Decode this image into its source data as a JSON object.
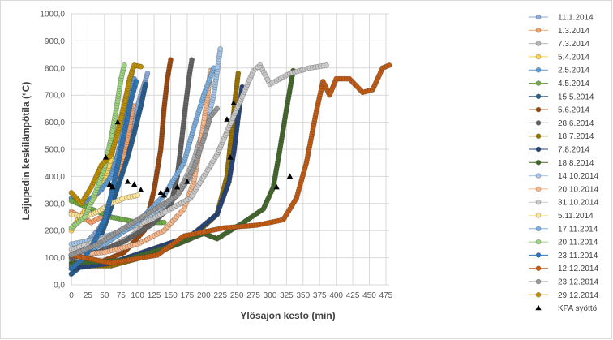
{
  "chart_data": {
    "type": "scatter",
    "xlabel": "Ylösajon kesto (min)",
    "ylabel": "Leijupedin keskilämpötila (°C)",
    "xlim": [
      0,
      480
    ],
    "ylim": [
      0,
      1000
    ],
    "x_ticks": [
      "0",
      "25",
      "50",
      "75",
      "100",
      "125",
      "150",
      "175",
      "200",
      "225",
      "250",
      "275",
      "300",
      "325",
      "350",
      "375",
      "400",
      "425",
      "450",
      "475"
    ],
    "y_ticks": [
      "0,0",
      "100,0",
      "200,0",
      "300,0",
      "400,0",
      "500,0",
      "600,0",
      "700,0",
      "800,0",
      "900,0",
      "1000,0"
    ],
    "grid": true,
    "legend_position": "right",
    "series": [
      {
        "name": "11.1.2014",
        "color": "#8aa9d6",
        "points": [
          [
            0,
            110
          ],
          [
            20,
            150
          ],
          [
            40,
            200
          ],
          [
            55,
            260
          ],
          [
            65,
            330
          ],
          [
            75,
            420
          ],
          [
            85,
            520
          ],
          [
            95,
            620
          ],
          [
            105,
            700
          ],
          [
            115,
            780
          ]
        ]
      },
      {
        "name": "1.3.2014",
        "color": "#f4a06b",
        "points": [
          [
            0,
            270
          ],
          [
            15,
            250
          ],
          [
            30,
            230
          ],
          [
            45,
            250
          ],
          [
            60,
            300
          ],
          [
            70,
            380
          ],
          [
            80,
            480
          ],
          [
            88,
            580
          ],
          [
            93,
            660
          ]
        ]
      },
      {
        "name": "7.3.2014",
        "color": "#b8b8b8",
        "points": [
          [
            0,
            90
          ],
          [
            30,
            110
          ],
          [
            60,
            140
          ],
          [
            90,
            180
          ],
          [
            120,
            230
          ],
          [
            150,
            300
          ],
          [
            170,
            380
          ],
          [
            185,
            460
          ],
          [
            195,
            540
          ],
          [
            205,
            600
          ]
        ]
      },
      {
        "name": "5.4.2014",
        "color": "#ffd24d",
        "points": [
          [
            0,
            200
          ],
          [
            10,
            240
          ],
          [
            25,
            290
          ],
          [
            40,
            340
          ],
          [
            55,
            420
          ],
          [
            65,
            520
          ],
          [
            75,
            620
          ],
          [
            85,
            720
          ],
          [
            92,
            790
          ]
        ]
      },
      {
        "name": "2.5.2014",
        "color": "#5b9bd5",
        "points": [
          [
            0,
            320
          ],
          [
            15,
            300
          ],
          [
            30,
            320
          ],
          [
            45,
            350
          ],
          [
            60,
            400
          ],
          [
            70,
            480
          ],
          [
            80,
            580
          ],
          [
            88,
            680
          ],
          [
            95,
            760
          ]
        ]
      },
      {
        "name": "4.5.2014",
        "color": "#70ad47",
        "points": [
          [
            0,
            310
          ],
          [
            20,
            290
          ],
          [
            40,
            270
          ],
          [
            60,
            250
          ],
          [
            80,
            240
          ],
          [
            100,
            230
          ],
          [
            120,
            230
          ],
          [
            140,
            230
          ]
        ]
      },
      {
        "name": "15.5.2014",
        "color": "#255e91",
        "points": [
          [
            0,
            40
          ],
          [
            20,
            80
          ],
          [
            40,
            150
          ],
          [
            55,
            250
          ],
          [
            70,
            360
          ],
          [
            85,
            470
          ],
          [
            95,
            560
          ],
          [
            105,
            660
          ],
          [
            112,
            740
          ]
        ]
      },
      {
        "name": "5.6.2014",
        "color": "#9e480e",
        "points": [
          [
            0,
            60
          ],
          [
            40,
            80
          ],
          [
            80,
            120
          ],
          [
            110,
            200
          ],
          [
            125,
            350
          ],
          [
            135,
            500
          ],
          [
            140,
            650
          ],
          [
            145,
            760
          ],
          [
            150,
            830
          ]
        ]
      },
      {
        "name": "28.6.2014",
        "color": "#636363",
        "points": [
          [
            0,
            100
          ],
          [
            40,
            120
          ],
          [
            80,
            160
          ],
          [
            120,
            220
          ],
          [
            150,
            290
          ],
          [
            160,
            400
          ],
          [
            166,
            520
          ],
          [
            172,
            650
          ],
          [
            178,
            770
          ],
          [
            182,
            830
          ]
        ]
      },
      {
        "name": "18.7.2014",
        "color": "#997300",
        "points": [
          [
            0,
            70
          ],
          [
            60,
            70
          ],
          [
            120,
            110
          ],
          [
            180,
            170
          ],
          [
            220,
            260
          ],
          [
            235,
            400
          ],
          [
            242,
            560
          ],
          [
            248,
            700
          ],
          [
            252,
            780
          ]
        ]
      },
      {
        "name": "7.8.2014",
        "color": "#264478",
        "points": [
          [
            0,
            60
          ],
          [
            60,
            80
          ],
          [
            120,
            130
          ],
          [
            180,
            180
          ],
          [
            220,
            260
          ],
          [
            238,
            380
          ],
          [
            246,
            500
          ],
          [
            252,
            620
          ],
          [
            258,
            730
          ]
        ]
      },
      {
        "name": "18.8.2014",
        "color": "#43682b",
        "points": [
          [
            0,
            80
          ],
          [
            80,
            90
          ],
          [
            160,
            150
          ],
          [
            200,
            190
          ],
          [
            220,
            170
          ],
          [
            260,
            230
          ],
          [
            290,
            280
          ],
          [
            305,
            360
          ],
          [
            315,
            500
          ],
          [
            325,
            650
          ],
          [
            335,
            790
          ]
        ]
      },
      {
        "name": "14.10.2014",
        "color": "#a5c6e8",
        "points": [
          [
            0,
            150
          ],
          [
            40,
            170
          ],
          [
            80,
            200
          ],
          [
            120,
            260
          ],
          [
            160,
            330
          ],
          [
            185,
            420
          ],
          [
            200,
            550
          ],
          [
            215,
            700
          ],
          [
            225,
            870
          ]
        ]
      },
      {
        "name": "20.10.2014",
        "color": "#f8b88b",
        "points": [
          [
            0,
            110
          ],
          [
            50,
            120
          ],
          [
            100,
            150
          ],
          [
            140,
            200
          ],
          [
            170,
            280
          ],
          [
            185,
            380
          ],
          [
            195,
            520
          ],
          [
            205,
            680
          ],
          [
            210,
            790
          ]
        ]
      },
      {
        "name": "31.10.2014",
        "color": "#c9c9c9",
        "points": [
          [
            0,
            130
          ],
          [
            60,
            180
          ],
          [
            120,
            240
          ],
          [
            180,
            320
          ],
          [
            220,
            480
          ],
          [
            250,
            650
          ],
          [
            275,
            790
          ],
          [
            285,
            810
          ],
          [
            300,
            740
          ],
          [
            330,
            780
          ],
          [
            360,
            800
          ],
          [
            385,
            810
          ]
        ]
      },
      {
        "name": "5.11.2014",
        "color": "#ffe699",
        "points": [
          [
            0,
            260
          ],
          [
            20,
            250
          ],
          [
            40,
            270
          ],
          [
            60,
            300
          ],
          [
            80,
            320
          ],
          [
            100,
            330
          ]
        ]
      },
      {
        "name": "17.11.2014",
        "color": "#7cb0e0",
        "points": [
          [
            0,
            110
          ],
          [
            50,
            150
          ],
          [
            100,
            230
          ],
          [
            140,
            330
          ],
          [
            170,
            450
          ],
          [
            185,
            580
          ],
          [
            200,
            700
          ],
          [
            215,
            800
          ]
        ]
      },
      {
        "name": "20.11.2014",
        "color": "#9dd47d",
        "points": [
          [
            0,
            210
          ],
          [
            20,
            250
          ],
          [
            35,
            330
          ],
          [
            50,
            430
          ],
          [
            60,
            540
          ],
          [
            68,
            650
          ],
          [
            75,
            760
          ],
          [
            80,
            810
          ]
        ]
      },
      {
        "name": "23.11.2014",
        "color": "#2e75b6",
        "points": [
          [
            0,
            60
          ],
          [
            20,
            100
          ],
          [
            35,
            160
          ],
          [
            50,
            240
          ],
          [
            60,
            330
          ],
          [
            70,
            440
          ],
          [
            80,
            560
          ],
          [
            90,
            680
          ],
          [
            98,
            750
          ]
        ]
      },
      {
        "name": "12.12.2014",
        "color": "#c55a11",
        "points": [
          [
            0,
            110
          ],
          [
            60,
            80
          ],
          [
            130,
            110
          ],
          [
            170,
            180
          ],
          [
            230,
            210
          ],
          [
            280,
            220
          ],
          [
            320,
            240
          ],
          [
            340,
            320
          ],
          [
            355,
            450
          ],
          [
            370,
            640
          ],
          [
            380,
            750
          ],
          [
            390,
            700
          ],
          [
            400,
            760
          ],
          [
            420,
            760
          ],
          [
            440,
            710
          ],
          [
            455,
            720
          ],
          [
            470,
            800
          ],
          [
            480,
            810
          ]
        ]
      },
      {
        "name": "23.12.2014",
        "color": "#999999",
        "points": [
          [
            0,
            110
          ],
          [
            40,
            150
          ],
          [
            80,
            210
          ],
          [
            120,
            270
          ],
          [
            160,
            330
          ],
          [
            185,
            430
          ],
          [
            200,
            540
          ],
          [
            210,
            620
          ],
          [
            220,
            650
          ]
        ]
      },
      {
        "name": "29.12.2014",
        "color": "#bf9000",
        "points": [
          [
            0,
            340
          ],
          [
            15,
            300
          ],
          [
            30,
            360
          ],
          [
            45,
            440
          ],
          [
            60,
            480
          ],
          [
            70,
            560
          ],
          [
            80,
            660
          ],
          [
            88,
            760
          ],
          [
            95,
            810
          ],
          [
            105,
            805
          ]
        ]
      }
    ],
    "kpa_series": {
      "name": "KPA syöttö",
      "color": "#000000",
      "points": [
        [
          52,
          470
        ],
        [
          58,
          370
        ],
        [
          62,
          360
        ],
        [
          70,
          600
        ],
        [
          85,
          380
        ],
        [
          95,
          370
        ],
        [
          105,
          350
        ],
        [
          135,
          340
        ],
        [
          140,
          330
        ],
        [
          145,
          350
        ],
        [
          160,
          360
        ],
        [
          175,
          380
        ],
        [
          235,
          610
        ],
        [
          240,
          470
        ],
        [
          245,
          670
        ],
        [
          310,
          360
        ],
        [
          330,
          400
        ]
      ]
    }
  }
}
